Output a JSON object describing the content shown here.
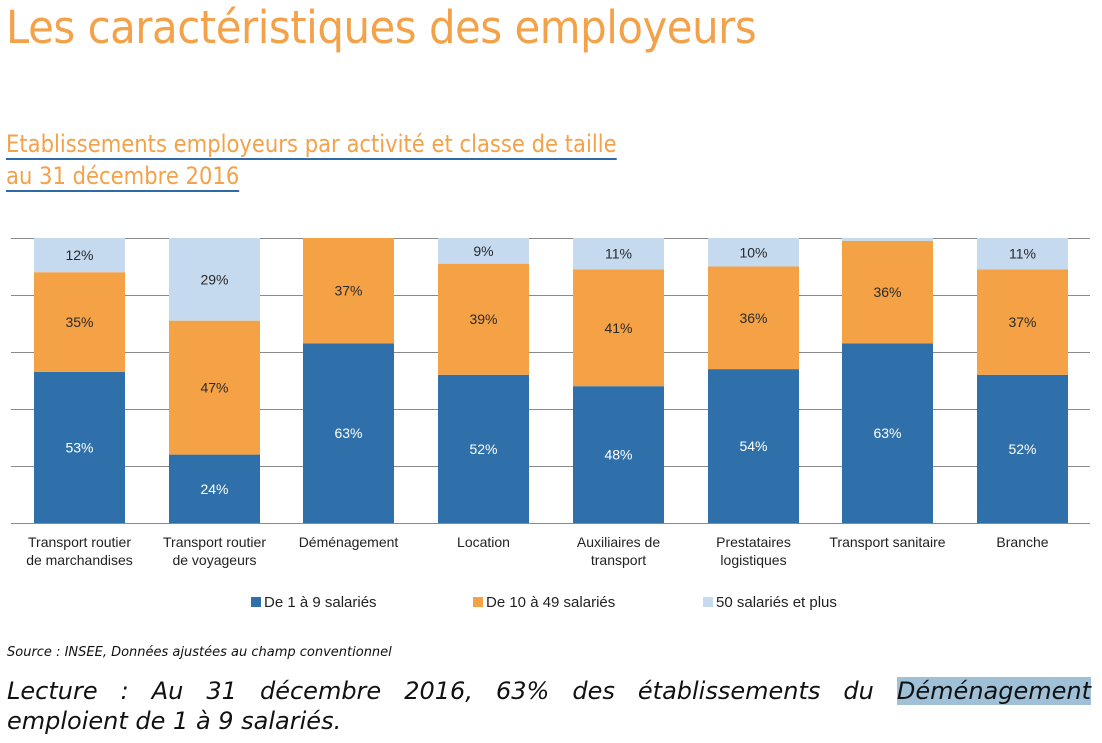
{
  "page": {
    "title": "Les caractéristiques des employeurs",
    "subtitle_line1": "Etablissements employeurs par activité et classe de taille",
    "subtitle_line2": "au 31 décembre 2016",
    "source": "Source : INSEE, Données ajustées au champ conventionnel",
    "lecture_before": "Lecture : Au 31 décembre 2016, 63% des établissements du ",
    "lecture_highlight": "Déménagement",
    "lecture_after": "emploient de 1 à 9 salariés."
  },
  "colors": {
    "title": "#f4a24a",
    "series_small": "#3070aa",
    "series_medium": "#f5a145",
    "series_large": "#c5d9ef",
    "gridline": "#8a8a8a",
    "highlight": "#a0c0d8"
  },
  "chart_data": {
    "type": "bar",
    "stacked": true,
    "title": "Etablissements employeurs par activité et classe de taille au 31 décembre 2016",
    "xlabel": "",
    "ylabel": "",
    "ylim": [
      0,
      100
    ],
    "grid": true,
    "legend_position": "bottom",
    "categories": [
      "Transport routier\nde marchandises",
      "Transport routier\nde voyageurs",
      "Déménagement",
      "Location",
      "Auxiliaires de\ntransport",
      "Prestataires\nlogistiques",
      "Transport sanitaire",
      "Branche"
    ],
    "series": [
      {
        "name": "De 1 à 9 salariés",
        "color": "#3070aa",
        "values": [
          53,
          24,
          63,
          52,
          48,
          54,
          63,
          52
        ],
        "labels": [
          "53%",
          "24%",
          "63%",
          "52%",
          "48%",
          "54%",
          "63%",
          "52%"
        ]
      },
      {
        "name": "De 10 à 49 salariés",
        "color": "#f5a145",
        "values": [
          35,
          47,
          37,
          39,
          41,
          36,
          36,
          37
        ],
        "labels": [
          "35%",
          "47%",
          "37%",
          "39%",
          "41%",
          "36%",
          "36%",
          "37%"
        ]
      },
      {
        "name": "50 salariés et plus",
        "color": "#c5d9ef",
        "values": [
          12,
          29,
          0,
          9,
          11,
          10,
          1,
          11
        ],
        "labels": [
          "12%",
          "29%",
          "",
          "9%",
          "11%",
          "10%",
          "",
          "11%"
        ]
      }
    ]
  }
}
